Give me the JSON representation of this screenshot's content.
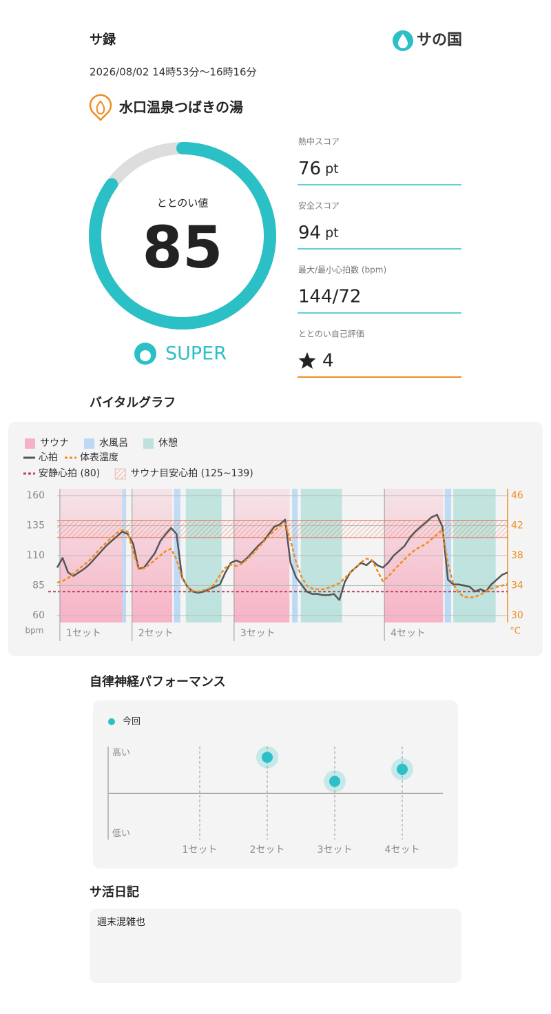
{
  "header": {
    "title": "サ録",
    "logo": "サの国",
    "datetime": "2026/08/02 14時53分〜16時16分",
    "facility": "水口温泉つばきの湯"
  },
  "score": {
    "label": "ととのい値",
    "value": 85,
    "range": [
      0,
      100
    ],
    "rank": "SUPER"
  },
  "stats": [
    {
      "label": "熱中スコア",
      "value": 76,
      "unit": "pt"
    },
    {
      "label": "安全スコア",
      "value": 94,
      "unit": "pt"
    },
    {
      "label": "最大/最小心拍数 (bpm)",
      "value": "144/72"
    },
    {
      "label": "ととのい自己評価",
      "value": 4
    }
  ],
  "chart_data": [
    {
      "type": "line",
      "title": "バイタルグラフ",
      "xlim": [
        0,
        83
      ],
      "ylim": [
        60,
        160
      ],
      "yticks": [
        60,
        85,
        110,
        135,
        160
      ],
      "ylabel": "bpm",
      "y2lim": [
        30,
        46
      ],
      "y2ticks": [
        30,
        34,
        38,
        42,
        46
      ],
      "y2label": "°C",
      "grid": true,
      "phases": [
        {
          "name": "サウナ",
          "color": "#f6b3c5",
          "spans": [
            [
              0.5,
              12
            ],
            [
              13.8,
              21.2
            ],
            [
              32.6,
              42.8
            ],
            [
              60.3,
              71.1
            ]
          ]
        },
        {
          "name": "水風呂",
          "color": "#bcd9f4",
          "spans": [
            [
              12,
              12.7
            ],
            [
              21.5,
              22.7
            ],
            [
              43.3,
              44.3
            ],
            [
              71.4,
              72.6
            ]
          ]
        },
        {
          "name": "休憩",
          "color": "#bde2dd",
          "spans": [
            [
              23.7,
              30.3
            ],
            [
              44.9,
              52.5
            ],
            [
              73,
              80.8
            ]
          ]
        }
      ],
      "sets": {
        "labels": [
          "1セット",
          "2セット",
          "3セット",
          "4セット"
        ],
        "x": [
          0.5,
          13.8,
          32.6,
          60.3
        ]
      },
      "x": [
        0,
        1,
        2,
        3,
        4,
        5,
        6,
        7,
        8,
        9,
        10,
        11,
        12,
        13,
        14,
        15,
        16,
        17,
        18,
        19,
        20,
        21,
        22,
        23,
        24,
        25,
        26,
        27,
        28,
        29,
        30,
        31,
        32,
        33,
        34,
        35,
        36,
        37,
        38,
        39,
        40,
        41,
        42,
        43,
        44,
        45,
        46,
        47,
        48,
        49,
        50,
        51,
        52,
        53,
        54,
        55,
        56,
        57,
        58,
        59,
        60,
        61,
        62,
        63,
        64,
        65,
        66,
        67,
        68,
        69,
        70,
        71,
        72,
        73,
        74,
        75,
        76,
        77,
        78,
        79,
        80,
        81,
        82,
        83
      ],
      "series": [
        {
          "name": "心拍",
          "color": "#555555",
          "values": [
            100,
            108,
            96,
            93,
            96,
            99,
            103,
            108,
            113,
            118,
            122,
            126,
            130,
            128,
            120,
            99,
            100,
            106,
            112,
            122,
            128,
            133,
            128,
            92,
            84,
            80,
            79,
            80,
            82,
            84,
            86,
            96,
            104,
            106,
            104,
            108,
            113,
            118,
            122,
            128,
            134,
            136,
            140,
            104,
            92,
            86,
            80,
            78,
            78,
            77,
            77,
            78,
            73,
            88,
            96,
            100,
            104,
            102,
            106,
            102,
            100,
            104,
            110,
            114,
            118,
            125,
            130,
            134,
            138,
            142,
            144,
            134,
            90,
            86,
            86,
            85,
            84,
            80,
            82,
            80,
            86,
            90,
            94,
            96
          ]
        },
        {
          "name": "体表温度",
          "color": "#f08c1e",
          "axis": "y2",
          "dash": true,
          "values": [
            34.4,
            34.6,
            35.0,
            35.6,
            36.2,
            36.8,
            37.4,
            38.2,
            39.0,
            39.7,
            40.4,
            41.0,
            41.4,
            41.2,
            38.5,
            36.2,
            36.3,
            36.8,
            37.4,
            38.0,
            38.6,
            38.9,
            37.5,
            35.0,
            33.8,
            33.3,
            33.2,
            33.4,
            33.6,
            34.2,
            35.4,
            36.4,
            36.8,
            36.6,
            36.9,
            37.5,
            38.2,
            39.0,
            39.8,
            40.6,
            41.3,
            41.9,
            42.3,
            40.0,
            37.2,
            35.2,
            34.0,
            33.6,
            33.5,
            33.5,
            33.7,
            34.0,
            34.3,
            35.0,
            35.7,
            36.4,
            37.1,
            37.6,
            37.4,
            36.0,
            34.6,
            35.2,
            36.0,
            36.8,
            37.5,
            38.2,
            38.8,
            39.2,
            39.6,
            40.2,
            40.8,
            41.4,
            37.0,
            34.2,
            33.0,
            32.5,
            32.4,
            32.5,
            32.8,
            33.2,
            33.6,
            33.8,
            34.0,
            34.2
          ]
        }
      ],
      "reference_lines": [
        {
          "name": "安静心拍 (80)",
          "value": 80,
          "color": "#c0405a"
        }
      ],
      "bands": [
        {
          "name": "サウナ目安心拍 (125~139)",
          "range": [
            125,
            139
          ],
          "color": "#e8704f"
        }
      ]
    },
    {
      "type": "scatter",
      "title": "自律神経パフォーマンス",
      "categories": [
        "1セット",
        "2セット",
        "3セット",
        "4セット"
      ],
      "ylim": [
        -1.15,
        1.15
      ],
      "yticks": [
        {
          "value": 1,
          "label": "高い"
        },
        {
          "value": -1,
          "label": "低い"
        }
      ],
      "series": [
        {
          "name": "今回",
          "color": "#2bbfc6",
          "values": [
            null,
            0.9,
            0.3,
            0.6
          ]
        }
      ]
    }
  ],
  "diary": {
    "title": "サ活日記",
    "text": "週末混雑也"
  }
}
